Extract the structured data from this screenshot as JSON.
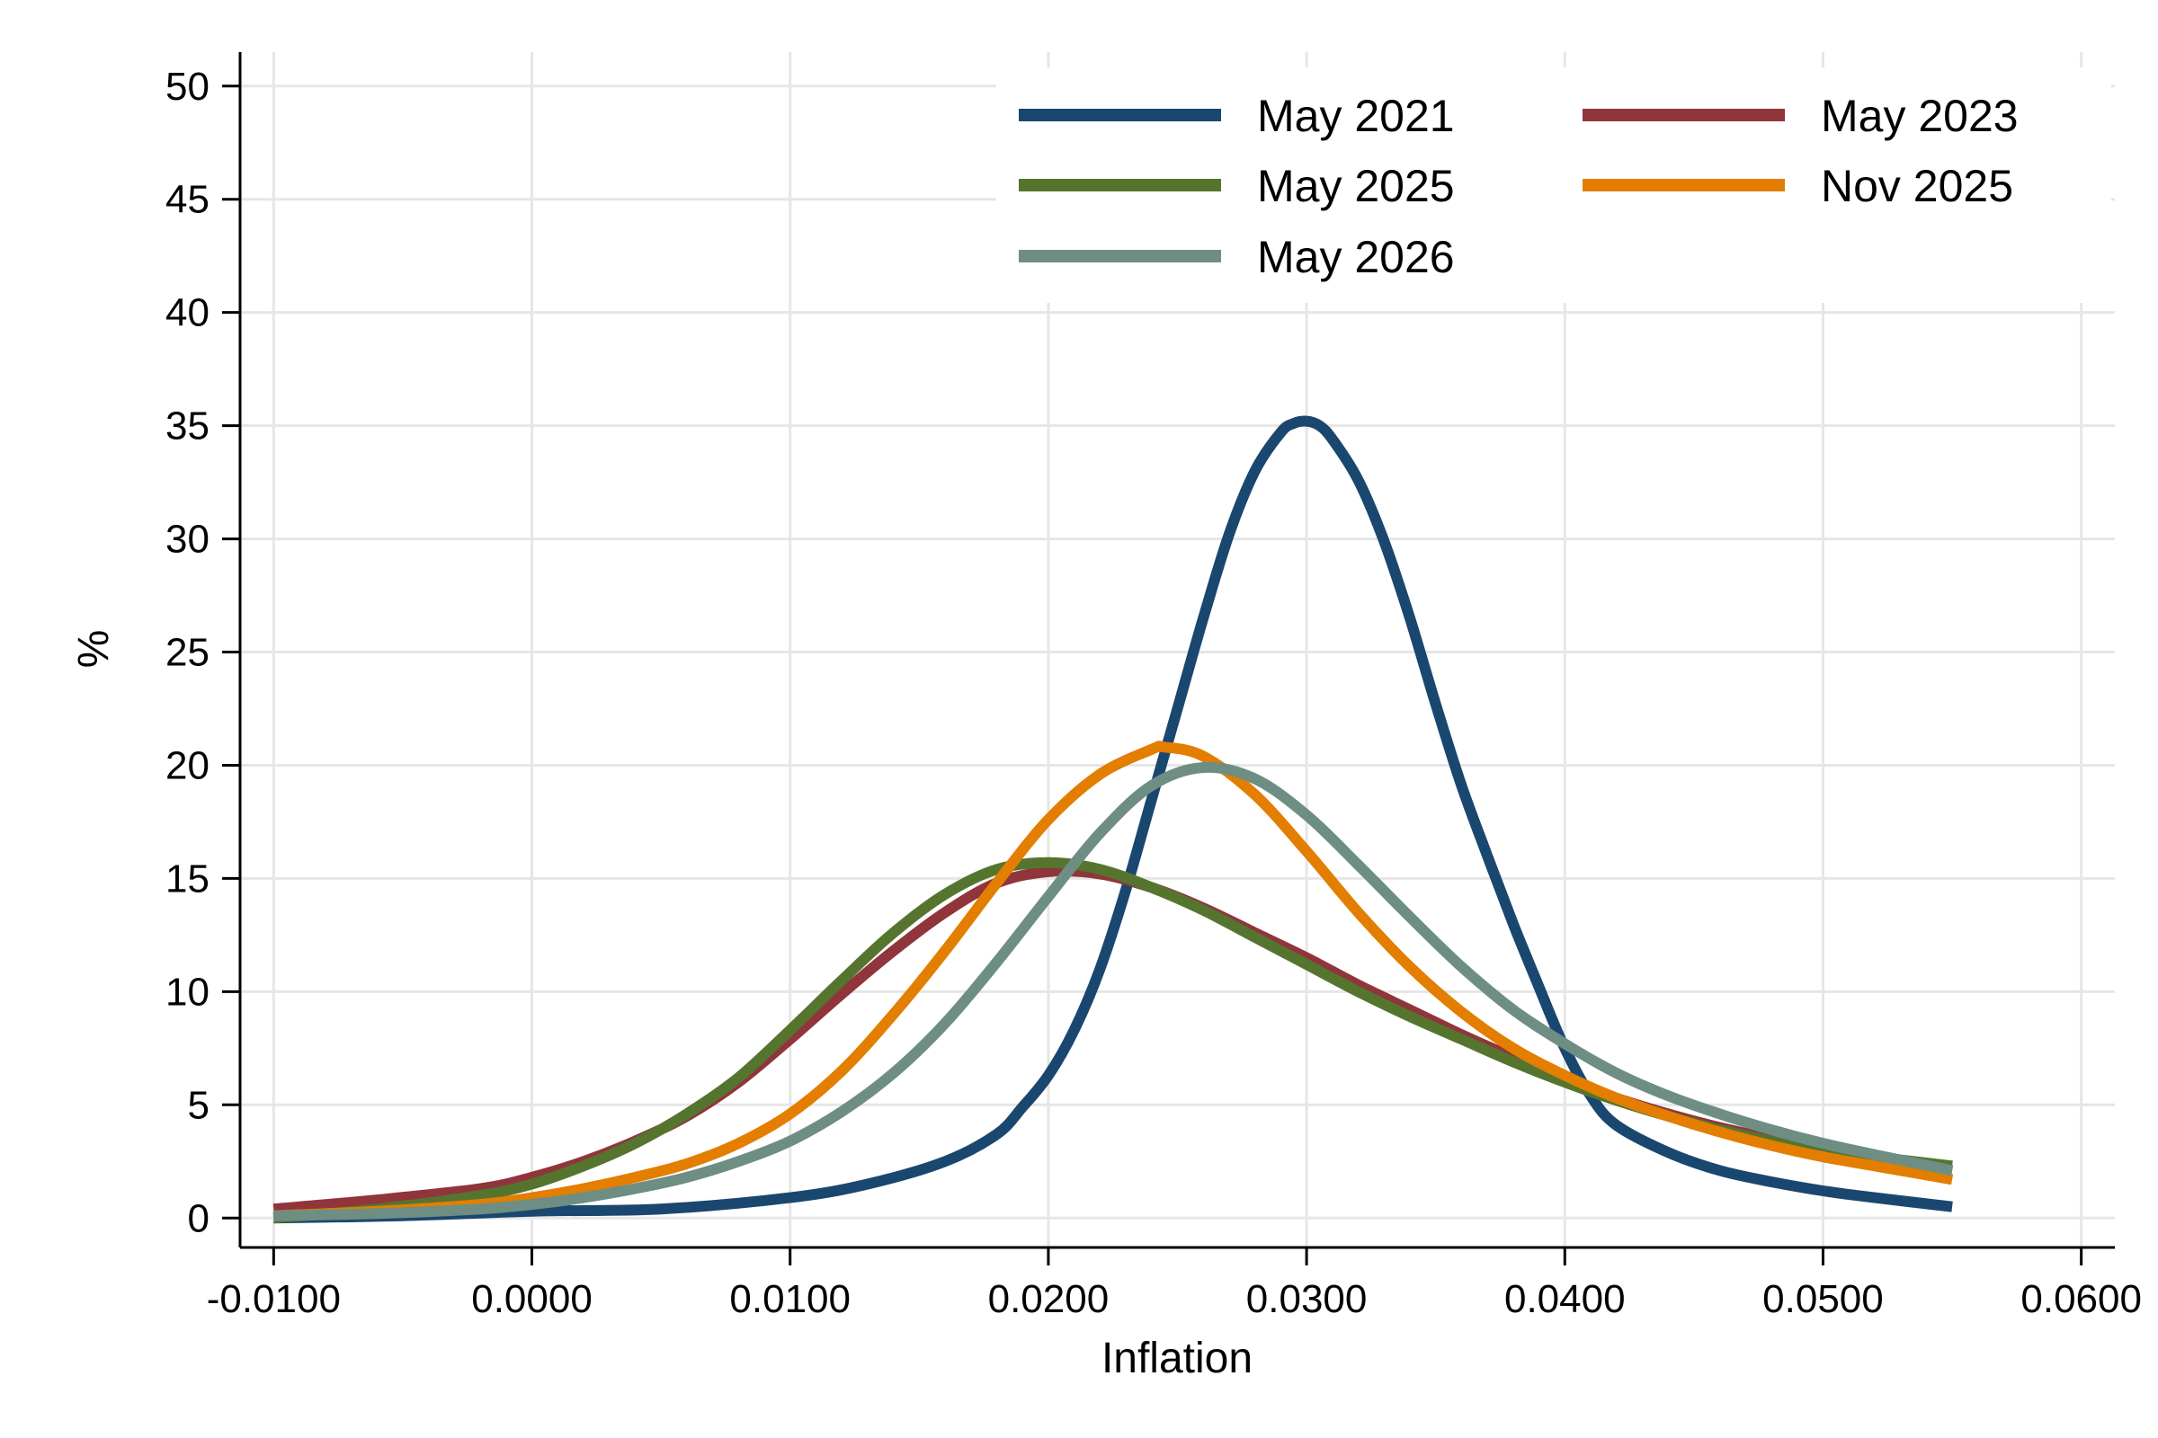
{
  "chart_data": {
    "type": "line",
    "title": "",
    "xlabel": "Inflation",
    "ylabel": "%",
    "xlim": [
      -0.0113,
      0.0613
    ],
    "ylim": [
      -1.3,
      51.5
    ],
    "x_ticks": [
      -0.01,
      0.0,
      0.01,
      0.02,
      0.03,
      0.04,
      0.05,
      0.06
    ],
    "x_tick_labels": [
      "-0.0100",
      "0.0000",
      "0.0100",
      "0.0200",
      "0.0300",
      "0.0400",
      "0.0500",
      "0.0600"
    ],
    "y_ticks": [
      0,
      5,
      10,
      15,
      20,
      25,
      30,
      35,
      40,
      45,
      50
    ],
    "y_tick_labels": [
      "0",
      "5",
      "10",
      "15",
      "20",
      "25",
      "30",
      "35",
      "40",
      "45",
      "50"
    ],
    "grid": true,
    "legend_position": "top-right",
    "series": [
      {
        "name": "May 2021",
        "color": "#1a476f",
        "x": [
          -0.01,
          -0.005,
          0.0,
          0.005,
          0.01,
          0.013,
          0.016,
          0.018,
          0.019,
          0.02,
          0.021,
          0.022,
          0.023,
          0.024,
          0.025,
          0.026,
          0.027,
          0.028,
          0.029,
          0.0295,
          0.03,
          0.0305,
          0.031,
          0.032,
          0.033,
          0.034,
          0.035,
          0.036,
          0.037,
          0.038,
          0.039,
          0.04,
          0.041,
          0.042,
          0.044,
          0.046,
          0.048,
          0.05,
          0.052,
          0.055
        ],
        "y": [
          0.0,
          0.1,
          0.3,
          0.4,
          0.9,
          1.5,
          2.5,
          3.7,
          4.9,
          6.3,
          8.3,
          11.0,
          14.5,
          18.5,
          22.5,
          26.5,
          30.2,
          33.0,
          34.7,
          35.1,
          35.2,
          35.0,
          34.4,
          32.6,
          29.9,
          26.5,
          22.7,
          19.1,
          16.0,
          13.0,
          10.2,
          7.5,
          5.4,
          4.1,
          2.9,
          2.1,
          1.6,
          1.2,
          0.9,
          0.5
        ]
      },
      {
        "name": "May 2023",
        "color": "#90353b",
        "x": [
          -0.01,
          -0.006,
          -0.002,
          0.0,
          0.002,
          0.004,
          0.006,
          0.008,
          0.01,
          0.012,
          0.014,
          0.016,
          0.018,
          0.02,
          0.022,
          0.024,
          0.026,
          0.028,
          0.03,
          0.032,
          0.034,
          0.036,
          0.038,
          0.04,
          0.042,
          0.044,
          0.046,
          0.048,
          0.05,
          0.052,
          0.055
        ],
        "y": [
          0.4,
          0.8,
          1.3,
          1.8,
          2.5,
          3.4,
          4.5,
          6.0,
          7.9,
          9.9,
          11.8,
          13.5,
          14.8,
          15.3,
          15.2,
          14.6,
          13.7,
          12.6,
          11.5,
          10.3,
          9.2,
          8.1,
          7.1,
          6.2,
          5.3,
          4.6,
          4.0,
          3.5,
          3.0,
          2.6,
          2.1
        ]
      },
      {
        "name": "May 2025",
        "color": "#55752f",
        "x": [
          -0.01,
          -0.006,
          -0.002,
          0.0,
          0.002,
          0.004,
          0.006,
          0.008,
          0.01,
          0.012,
          0.014,
          0.016,
          0.018,
          0.02,
          0.022,
          0.024,
          0.026,
          0.028,
          0.03,
          0.032,
          0.034,
          0.036,
          0.038,
          0.04,
          0.042,
          0.044,
          0.046,
          0.048,
          0.05,
          0.052,
          0.055
        ],
        "y": [
          0.0,
          0.4,
          1.0,
          1.5,
          2.3,
          3.3,
          4.6,
          6.2,
          8.3,
          10.5,
          12.6,
          14.3,
          15.4,
          15.7,
          15.4,
          14.6,
          13.6,
          12.4,
          11.2,
          10.0,
          8.9,
          7.9,
          6.9,
          6.0,
          5.2,
          4.5,
          3.9,
          3.4,
          3.0,
          2.7,
          2.3
        ]
      },
      {
        "name": "Nov 2025",
        "color": "#e37e00",
        "x": [
          -0.01,
          -0.006,
          -0.002,
          0.0,
          0.002,
          0.004,
          0.006,
          0.008,
          0.01,
          0.012,
          0.014,
          0.016,
          0.018,
          0.02,
          0.022,
          0.024,
          0.0245,
          0.026,
          0.028,
          0.03,
          0.032,
          0.034,
          0.036,
          0.038,
          0.04,
          0.042,
          0.044,
          0.046,
          0.048,
          0.05,
          0.052,
          0.055
        ],
        "y": [
          0.1,
          0.3,
          0.6,
          0.9,
          1.3,
          1.8,
          2.4,
          3.3,
          4.6,
          6.5,
          9.0,
          11.8,
          14.8,
          17.6,
          19.6,
          20.7,
          20.8,
          20.4,
          18.7,
          16.2,
          13.5,
          11.1,
          9.1,
          7.5,
          6.3,
          5.3,
          4.5,
          3.8,
          3.2,
          2.7,
          2.3,
          1.7
        ]
      },
      {
        "name": "May 2026",
        "color": "#6e8e84",
        "x": [
          -0.01,
          -0.006,
          -0.002,
          0.0,
          0.002,
          0.004,
          0.006,
          0.008,
          0.01,
          0.012,
          0.014,
          0.016,
          0.018,
          0.02,
          0.022,
          0.024,
          0.026,
          0.028,
          0.03,
          0.032,
          0.034,
          0.036,
          0.038,
          0.04,
          0.042,
          0.044,
          0.046,
          0.048,
          0.05,
          0.052,
          0.055
        ],
        "y": [
          0.1,
          0.2,
          0.4,
          0.6,
          0.9,
          1.3,
          1.8,
          2.5,
          3.4,
          4.7,
          6.4,
          8.6,
          11.3,
          14.2,
          17.0,
          19.1,
          19.9,
          19.4,
          17.8,
          15.6,
          13.3,
          11.1,
          9.2,
          7.7,
          6.4,
          5.4,
          4.6,
          3.9,
          3.3,
          2.8,
          2.1
        ]
      }
    ],
    "legend_order": [
      "May 2021",
      "May 2023",
      "May 2025",
      "Nov 2025",
      "May 2026"
    ]
  }
}
